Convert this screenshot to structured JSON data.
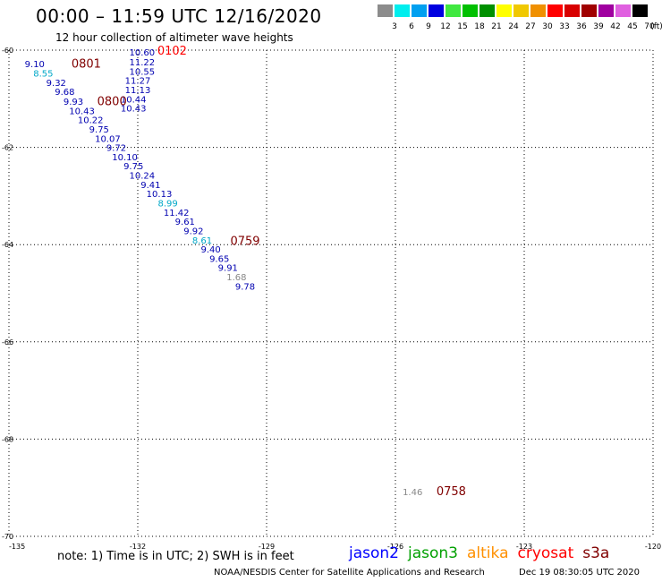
{
  "title": "00:00 – 11:59 UTC 12/16/2020",
  "subtitle": "12 hour collection of altimeter wave heights",
  "legend": {
    "unit": "(ft)",
    "bins": [
      {
        "label": "3",
        "color": "#8c8c8c"
      },
      {
        "label": "6",
        "color": "#00eeee"
      },
      {
        "label": "9",
        "color": "#00a0f0"
      },
      {
        "label": "12",
        "color": "#0000e0"
      },
      {
        "label": "15",
        "color": "#40e840"
      },
      {
        "label": "18",
        "color": "#00c000"
      },
      {
        "label": "21",
        "color": "#009000"
      },
      {
        "label": "24",
        "color": "#ffff00"
      },
      {
        "label": "27",
        "color": "#f0c800"
      },
      {
        "label": "30",
        "color": "#f09000"
      },
      {
        "label": "33",
        "color": "#ff0000"
      },
      {
        "label": "36",
        "color": "#d80000"
      },
      {
        "label": "39",
        "color": "#a00000"
      },
      {
        "label": "42",
        "color": "#a000a0"
      },
      {
        "label": "45",
        "color": "#e060e0"
      },
      {
        "label": "70",
        "color": "#000000"
      }
    ]
  },
  "map": {
    "lon_ticks": [
      "-135",
      "-132",
      "-129",
      "-126",
      "-123",
      "-120"
    ],
    "lat_ticks": [
      "-60",
      "-62",
      "-64",
      "-66",
      "-68",
      "-70"
    ],
    "lon_range": [
      -135,
      -120
    ],
    "lat_range": [
      -60,
      -70
    ]
  },
  "observations": [
    {
      "lon": -134.4,
      "lat": -60.28,
      "value": "9.10",
      "color": "#0000b0"
    },
    {
      "lon": -134.2,
      "lat": -60.47,
      "value": "8.55",
      "color": "#00a8c8"
    },
    {
      "lon": -133.9,
      "lat": -60.66,
      "value": "9.32",
      "color": "#0000b0"
    },
    {
      "lon": -133.7,
      "lat": -60.85,
      "value": "9.68",
      "color": "#0000b0"
    },
    {
      "lon": -133.5,
      "lat": -61.05,
      "value": "9.93",
      "color": "#0000b0"
    },
    {
      "lon": -133.3,
      "lat": -61.24,
      "value": "10.43",
      "color": "#0000b0"
    },
    {
      "lon": -133.1,
      "lat": -61.43,
      "value": "10.22",
      "color": "#0000b0"
    },
    {
      "lon": -132.9,
      "lat": -61.62,
      "value": "9.75",
      "color": "#0000b0"
    },
    {
      "lon": -132.7,
      "lat": -61.81,
      "value": "10.07",
      "color": "#0000b0"
    },
    {
      "lon": -132.5,
      "lat": -62.0,
      "value": "9.72",
      "color": "#0000b0"
    },
    {
      "lon": -132.3,
      "lat": -62.19,
      "value": "10.10",
      "color": "#0000b0"
    },
    {
      "lon": -132.1,
      "lat": -62.38,
      "value": "9.75",
      "color": "#0000b0"
    },
    {
      "lon": -131.9,
      "lat": -62.57,
      "value": "10.24",
      "color": "#0000b0"
    },
    {
      "lon": -131.7,
      "lat": -62.76,
      "value": "9.41",
      "color": "#0000b0"
    },
    {
      "lon": -131.5,
      "lat": -62.95,
      "value": "10.13",
      "color": "#0000b0"
    },
    {
      "lon": -131.3,
      "lat": -63.14,
      "value": "8.99",
      "color": "#00a8c8"
    },
    {
      "lon": -131.1,
      "lat": -63.33,
      "value": "11.42",
      "color": "#0000b0"
    },
    {
      "lon": -130.9,
      "lat": -63.52,
      "value": "9.61",
      "color": "#0000b0"
    },
    {
      "lon": -130.7,
      "lat": -63.71,
      "value": "9.92",
      "color": "#0000b0"
    },
    {
      "lon": -130.5,
      "lat": -63.9,
      "value": "8.61",
      "color": "#00a8c8"
    },
    {
      "lon": -130.3,
      "lat": -64.09,
      "value": "9.40",
      "color": "#0000b0"
    },
    {
      "lon": -130.1,
      "lat": -64.28,
      "value": "9.65",
      "color": "#0000b0"
    },
    {
      "lon": -129.9,
      "lat": -64.47,
      "value": "9.91",
      "color": "#0000b0"
    },
    {
      "lon": -129.7,
      "lat": -64.66,
      "value": "1.68",
      "color": "#888888"
    },
    {
      "lon": -129.5,
      "lat": -64.85,
      "value": "9.78",
      "color": "#0000b0"
    },
    {
      "lon": -131.9,
      "lat": -60.04,
      "value": "10.60",
      "color": "#0000b0"
    },
    {
      "lon": -131.9,
      "lat": -60.24,
      "value": "11.22",
      "color": "#0000b0"
    },
    {
      "lon": -131.9,
      "lat": -60.43,
      "value": "10.55",
      "color": "#0000b0"
    },
    {
      "lon": -132.0,
      "lat": -60.62,
      "value": "11.27",
      "color": "#0000b0"
    },
    {
      "lon": -132.0,
      "lat": -60.81,
      "value": "11.13",
      "color": "#0000b0"
    },
    {
      "lon": -132.1,
      "lat": -61.0,
      "value": "10.44",
      "color": "#0000b0"
    },
    {
      "lon": -132.1,
      "lat": -61.19,
      "value": "10.43",
      "color": "#0000b0"
    },
    {
      "lon": -125.6,
      "lat": -69.08,
      "value": "1.46",
      "color": "#888888"
    }
  ],
  "time_labels": [
    {
      "lon": -133.2,
      "lat": -60.29,
      "text": "0801",
      "color": "#800000"
    },
    {
      "lon": -131.2,
      "lat": -60.02,
      "text": "0102",
      "color": "#ff0000"
    },
    {
      "lon": -132.6,
      "lat": -61.06,
      "text": "0800",
      "color": "#800000"
    },
    {
      "lon": -129.5,
      "lat": -63.93,
      "text": "0759",
      "color": "#800000"
    },
    {
      "lon": -124.7,
      "lat": -69.08,
      "text": "0758",
      "color": "#800000"
    }
  ],
  "note": "note:  1) Time is in UTC;  2) SWH is in feet",
  "satellites": [
    {
      "name": "jason2",
      "color": "#0000ff"
    },
    {
      "name": "jason3",
      "color": "#00a000"
    },
    {
      "name": "altika",
      "color": "#ff9000"
    },
    {
      "name": "cryosat",
      "color": "#ff0000"
    },
    {
      "name": "s3a",
      "color": "#800000"
    }
  ],
  "credit": "NOAA/NESDIS Center for Satellite Applications and Research",
  "timestamp": "Dec 19 08:30:05 UTC 2020"
}
